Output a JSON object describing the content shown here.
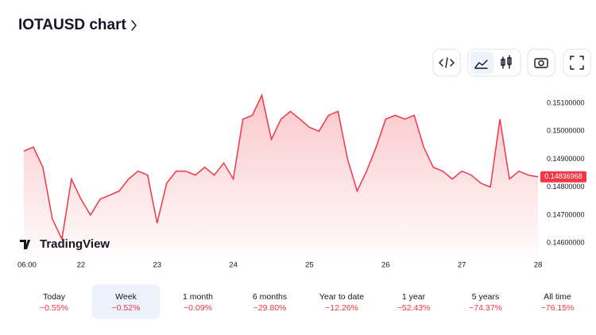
{
  "title": "IOTAUSD chart",
  "watermark": "TradingView",
  "chart_data": {
    "type": "line",
    "x": [
      0,
      3,
      6,
      9,
      12,
      15,
      18,
      21,
      24,
      27,
      30,
      33,
      36,
      39,
      42,
      45,
      48,
      51,
      54,
      57,
      60,
      63,
      66,
      69,
      72,
      75,
      78,
      81,
      84,
      87,
      90,
      93,
      96,
      99,
      102,
      105,
      108,
      111,
      114,
      117,
      120,
      123,
      126,
      129,
      132,
      135,
      138,
      141,
      144,
      147,
      150,
      153,
      156,
      159,
      162
    ],
    "series": [
      {
        "name": "IOTAUSD",
        "color": "#f23645",
        "values": [
          0.14929,
          0.14943,
          0.14871,
          0.14686,
          0.14614,
          0.14829,
          0.14757,
          0.147,
          0.14757,
          0.14771,
          0.14786,
          0.14829,
          0.14857,
          0.14843,
          0.14671,
          0.14814,
          0.14857,
          0.14857,
          0.14843,
          0.14871,
          0.14843,
          0.14886,
          0.14829,
          0.15043,
          0.15057,
          0.15129,
          0.14971,
          0.15043,
          0.15071,
          0.15043,
          0.15014,
          0.15,
          0.15057,
          0.15071,
          0.149,
          0.14786,
          0.14857,
          0.14943,
          0.15043,
          0.15057,
          0.15043,
          0.15057,
          0.14943,
          0.14871,
          0.14857,
          0.14829,
          0.14857,
          0.14843,
          0.14814,
          0.148,
          0.15043,
          0.14829,
          0.14857,
          0.14843,
          0.14836968
        ]
      }
    ],
    "xlim": [
      0,
      162
    ],
    "xticks": [
      {
        "value": 0,
        "label": "06:00"
      },
      {
        "value": 18,
        "label": "22"
      },
      {
        "value": 42,
        "label": "23"
      },
      {
        "value": 66,
        "label": "24"
      },
      {
        "value": 90,
        "label": "25"
      },
      {
        "value": 114,
        "label": "26"
      },
      {
        "value": 138,
        "label": "27"
      },
      {
        "value": 162,
        "label": "28"
      }
    ],
    "ylim": [
      0.14555,
      0.15157
    ],
    "yticks": [
      {
        "value": 0.146,
        "label": "0.14600000"
      },
      {
        "value": 0.147,
        "label": "0.14700000"
      },
      {
        "value": 0.148,
        "label": "0.14800000"
      },
      {
        "value": 0.149,
        "label": "0.14900000"
      },
      {
        "value": 0.15,
        "label": "0.15000000"
      },
      {
        "value": 0.151,
        "label": "0.15100000"
      }
    ]
  },
  "periods": [
    {
      "label": "Today",
      "change": "−0.55%"
    },
    {
      "label": "Week",
      "change": "−0.52%"
    },
    {
      "label": "1 month",
      "change": "−0.09%"
    },
    {
      "label": "6 months",
      "change": "−29.80%"
    },
    {
      "label": "Year to date",
      "change": "−12.26%"
    },
    {
      "label": "1 year",
      "change": "−52.43%"
    },
    {
      "label": "5 years",
      "change": "−74.37%"
    },
    {
      "label": "All time",
      "change": "−76.15%"
    }
  ],
  "selected": 1
}
